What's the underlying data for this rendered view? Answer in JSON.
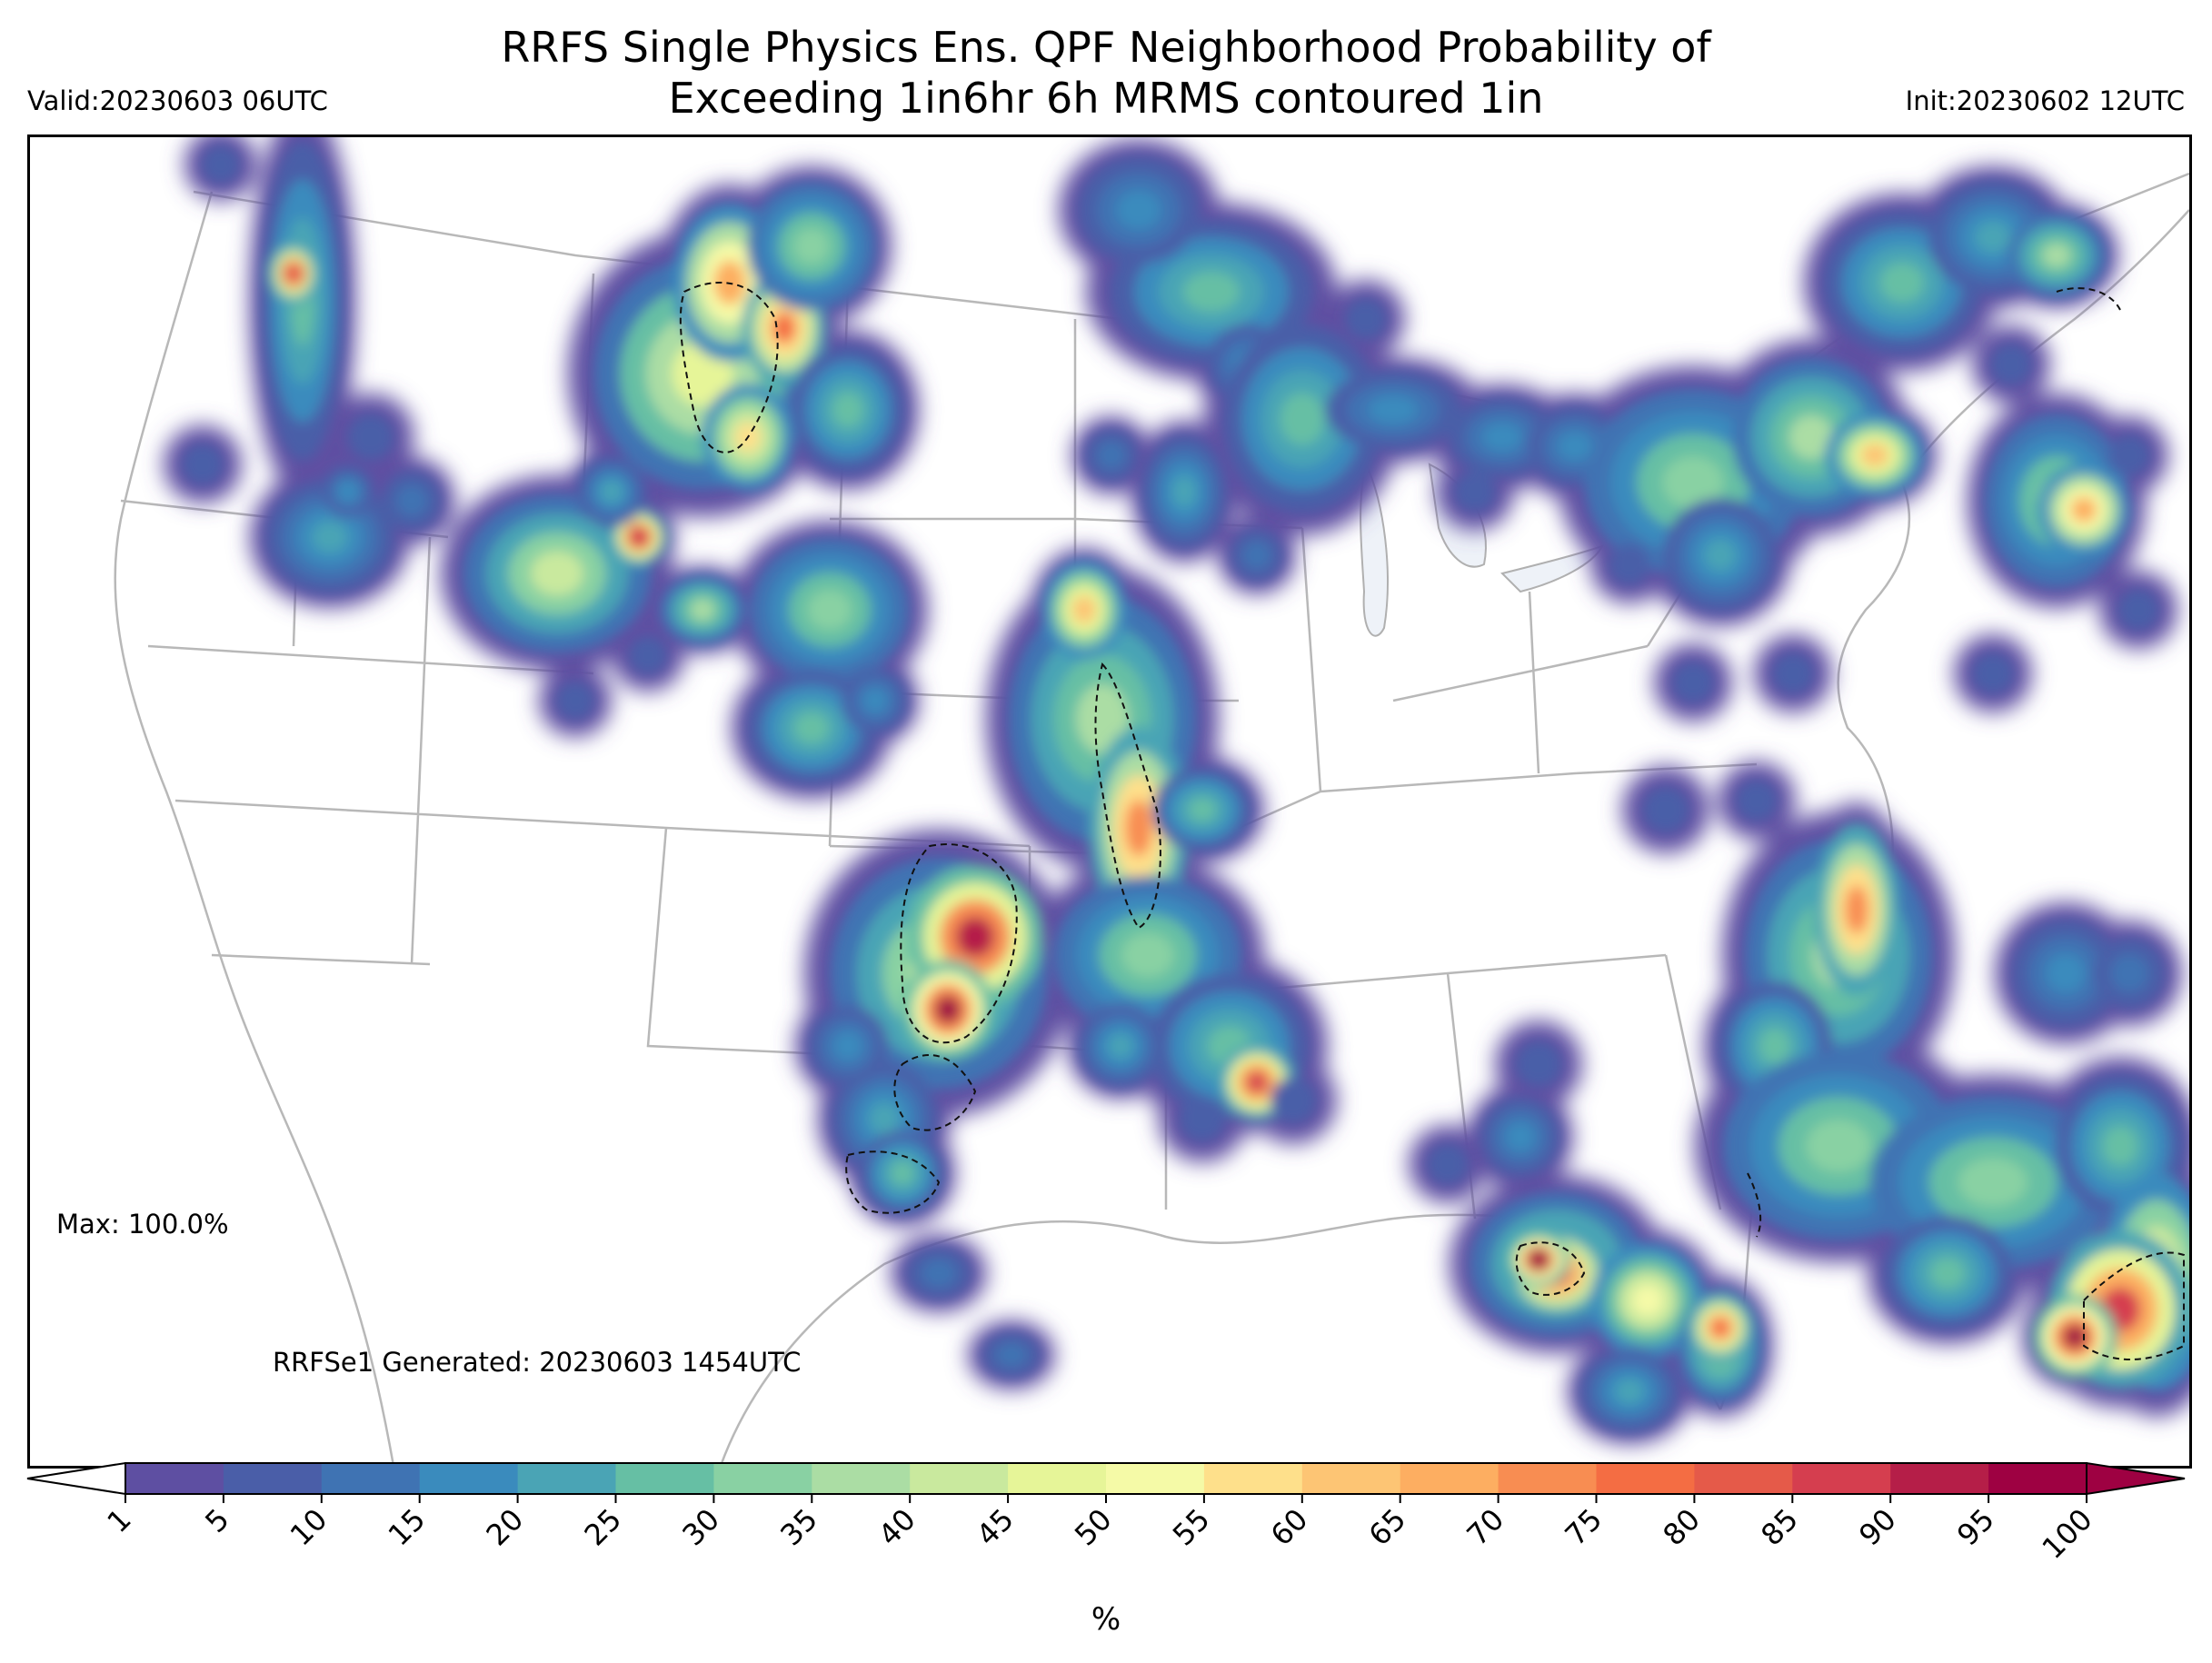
{
  "header": {
    "title_line1": "RRFS Single Physics Ens. QPF Neighborhood Probability of",
    "title_line2": "Exceeding 1in6hr 6h MRMS contoured 1in",
    "valid": "Valid:20230603 06UTC",
    "init": "Init:20230602 12UTC"
  },
  "map": {
    "max_label": "Max: 100.0%",
    "generated_label": "RRFSe1 Generated: 20230603 1454UTC",
    "background_color": "#ffffff",
    "border_color": "#b0b0b0",
    "lake_color": "#eef2f8"
  },
  "colorbar": {
    "unit": "%",
    "ticks": [
      "1",
      "5",
      "10",
      "15",
      "20",
      "25",
      "30",
      "35",
      "40",
      "45",
      "50",
      "55",
      "60",
      "65",
      "70",
      "75",
      "80",
      "85",
      "90",
      "95",
      "100"
    ],
    "colors": [
      "#5e4fa2",
      "#4a5ea8",
      "#3f73b3",
      "#3a8bbd",
      "#4aa4b5",
      "#66bfa4",
      "#89d1a3",
      "#abdda4",
      "#c9e99e",
      "#e6f598",
      "#f5faa7",
      "#fee08b",
      "#fdc574",
      "#fdae61",
      "#f88d52",
      "#f46d43",
      "#e55a49",
      "#d53e4f",
      "#b51e48",
      "#9e0142"
    ]
  },
  "probability_field": {
    "maximum_percent": 100.0
  }
}
